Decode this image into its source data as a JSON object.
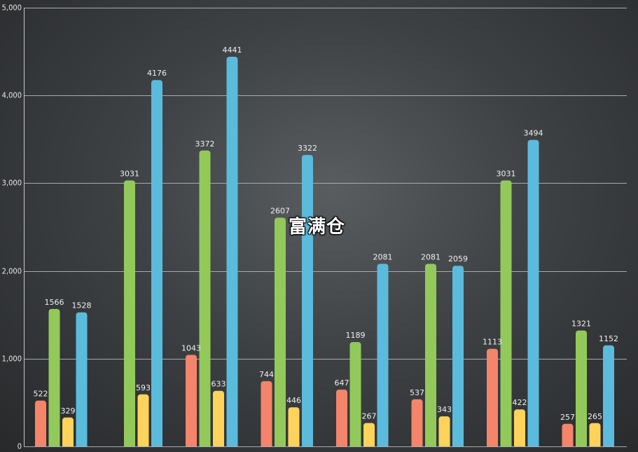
{
  "watermark": "富满仓",
  "colors": {
    "series": [
      "#f4846a",
      "#93c95a",
      "#fdd35b",
      "#5bbbdc"
    ]
  },
  "chart_data": {
    "type": "bar",
    "categories": [
      "",
      "",
      "",
      "",
      "",
      "",
      "",
      ""
    ],
    "ylim": [
      0,
      5000
    ],
    "yticks": [
      0,
      1000,
      2000,
      3000,
      4000,
      5000
    ],
    "ytick_labels": [
      "0",
      "1,000",
      "2,000",
      "3,000",
      "4,000",
      "5,000"
    ],
    "grid": true,
    "series": [
      {
        "values": [
          522,
          0,
          1043,
          744,
          647,
          537,
          1113,
          257
        ]
      },
      {
        "values": [
          1566,
          3031,
          3372,
          2607,
          1189,
          2081,
          3031,
          1321
        ]
      },
      {
        "values": [
          329,
          593,
          633,
          446,
          267,
          343,
          422,
          265
        ]
      },
      {
        "values": [
          1528,
          4176,
          4441,
          3322,
          2081,
          2059,
          3494,
          1152
        ]
      }
    ]
  }
}
